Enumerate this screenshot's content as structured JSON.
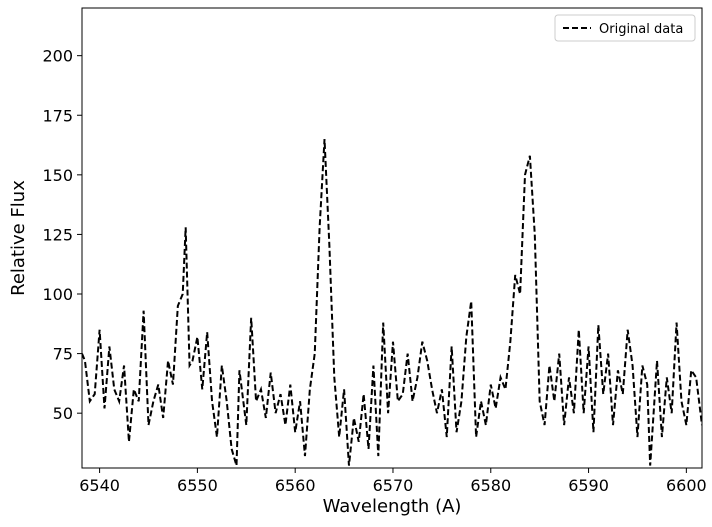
{
  "chart_data": {
    "type": "line",
    "xlabel": "Wavelength (A)",
    "ylabel": "Relative Flux",
    "xlim": [
      6538.2,
      6601.6
    ],
    "ylim": [
      27,
      220
    ],
    "xticks": [
      6540,
      6550,
      6560,
      6570,
      6580,
      6590,
      6600
    ],
    "yticks": [
      50,
      75,
      100,
      125,
      150,
      175,
      200
    ],
    "legend": "upper right",
    "x": [
      6538.2,
      6538.5,
      6539,
      6539.5,
      6540,
      6540.5,
      6541,
      6541.5,
      6542,
      6542.5,
      6543,
      6543.5,
      6544,
      6544.5,
      6545,
      6545.5,
      6546,
      6546.5,
      6547,
      6547.5,
      6548,
      6548.5,
      6548.8,
      6549.2,
      6549.5,
      6550,
      6550.5,
      6551,
      6551.5,
      6552,
      6552.5,
      6553,
      6553.5,
      6554,
      6554.3,
      6555,
      6555.5,
      6556,
      6556.5,
      6557,
      6557.5,
      6558,
      6558.5,
      6559,
      6559.5,
      6560,
      6560.5,
      6561,
      6561.5,
      6562,
      6562.5,
      6563,
      6563.5,
      6564,
      6564.5,
      6565,
      6565.5,
      6566,
      6566.5,
      6567,
      6567.5,
      6568,
      6568.5,
      6569,
      6569.5,
      6570,
      6570.5,
      6571,
      6571.5,
      6572,
      6572.5,
      6573,
      6573.5,
      6574,
      6574.5,
      6575,
      6575.5,
      6576,
      6576.5,
      6577,
      6577.5,
      6578,
      6578.5,
      6579,
      6579.5,
      6580,
      6580.5,
      6581,
      6581.5,
      6582,
      6582.5,
      6583,
      6583.5,
      6584,
      6584.5,
      6585,
      6585.5,
      6586,
      6586.5,
      6587,
      6587.5,
      6588,
      6588.5,
      6589,
      6589.5,
      6590,
      6590.5,
      6591,
      6591.5,
      6592,
      6592.5,
      6593,
      6593.5,
      6594,
      6594.5,
      6595,
      6595.5,
      6596,
      6596.3,
      6597,
      6597.5,
      6598,
      6598.5,
      6599,
      6599.5,
      6600,
      6600.5,
      6601,
      6601.6
    ],
    "series": [
      {
        "name": "Original data",
        "color": "#000000",
        "values": [
          75,
          72,
          55,
          58,
          85,
          52,
          78,
          60,
          55,
          70,
          38,
          60,
          55,
          93,
          45,
          55,
          62,
          48,
          72,
          62,
          95,
          100,
          128,
          70,
          72,
          82,
          60,
          84,
          55,
          40,
          70,
          55,
          35,
          28,
          68,
          45,
          90,
          55,
          60,
          48,
          67,
          50,
          58,
          45,
          62,
          42,
          55,
          32,
          60,
          75,
          128,
          165,
          120,
          65,
          40,
          60,
          28,
          48,
          38,
          58,
          35,
          70,
          32,
          88,
          50,
          80,
          55,
          58,
          75,
          55,
          65,
          80,
          72,
          60,
          50,
          60,
          40,
          78,
          42,
          55,
          82,
          97,
          40,
          55,
          45,
          62,
          52,
          65,
          60,
          80,
          108,
          100,
          150,
          158,
          125,
          55,
          45,
          70,
          55,
          75,
          45,
          65,
          50,
          85,
          50,
          78,
          42,
          87,
          58,
          75,
          45,
          68,
          58,
          85,
          70,
          40,
          70,
          62,
          28,
          72,
          40,
          65,
          50,
          88,
          55,
          45,
          68,
          65,
          45
        ]
      }
    ]
  }
}
